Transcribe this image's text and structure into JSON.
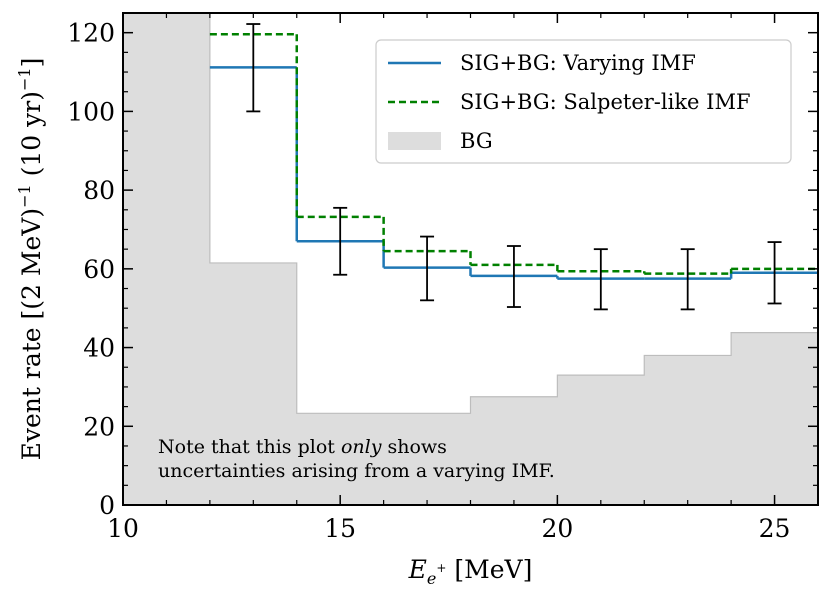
{
  "chart_data": {
    "type": "step-histogram",
    "title": "",
    "xlabel": "E_{e+} [MeV]",
    "xlabel_main": "E",
    "xlabel_sub": "e",
    "xlabel_sup": "+",
    "xlabel_unit": " [MeV]",
    "ylabel": "Event rate [(2 MeV)−1 (10 yr)−1]",
    "ylabel_parts": {
      "a": "Event rate [(2 MeV)",
      "sup1": "−1",
      "b": " (10 yr)",
      "sup2": "−1",
      "c": "]"
    },
    "xlim": [
      10,
      26
    ],
    "ylim": [
      0,
      125
    ],
    "xticks": [
      10,
      15,
      20,
      25
    ],
    "xtick_labels": [
      "10",
      "15",
      "20",
      "25"
    ],
    "yticks": [
      0,
      20,
      40,
      60,
      80,
      100,
      120
    ],
    "ytick_labels": [
      "0",
      "20",
      "40",
      "60",
      "80",
      "100",
      "120"
    ],
    "bin_edges": [
      12,
      14,
      16,
      18,
      20,
      22,
      24,
      26
    ],
    "bin_centers": [
      13,
      15,
      17,
      19,
      21,
      23,
      25
    ],
    "background": {
      "name": "BG",
      "start": 10,
      "leading_value": 125,
      "values": [
        61.5,
        23.3,
        23.3,
        27.5,
        33.0,
        38.0,
        43.8
      ],
      "color": "#dddddd"
    },
    "series": [
      {
        "name": "SIG+BG: Varying IMF",
        "style": "solid",
        "color": "#1f77b4",
        "values": [
          111.2,
          67.0,
          60.3,
          58.2,
          57.5,
          57.5,
          59.0
        ]
      },
      {
        "name": "SIG+BG: Salpeter-like IMF",
        "style": "dashed",
        "color": "#008000",
        "values": [
          119.6,
          73.2,
          64.5,
          61.0,
          59.4,
          58.8,
          60.0
        ]
      }
    ],
    "error_bars": {
      "x": [
        13,
        15,
        17,
        19,
        21,
        23,
        25
      ],
      "low": [
        100.0,
        58.5,
        52.0,
        50.3,
        49.7,
        49.7,
        51.2
      ],
      "high": [
        122.2,
        75.5,
        68.2,
        65.8,
        65.0,
        65.0,
        66.8
      ],
      "color": "#000000"
    },
    "legend": {
      "placement": "top-right",
      "entries": [
        "SIG+BG: Varying IMF",
        "SIG+BG: Salpeter-like IMF",
        "BG"
      ]
    },
    "annotation": {
      "line1_before": "Note that this plot ",
      "line1_emph": "only",
      "line1_after": " shows",
      "line2": "uncertainties arising from a varying IMF."
    }
  }
}
